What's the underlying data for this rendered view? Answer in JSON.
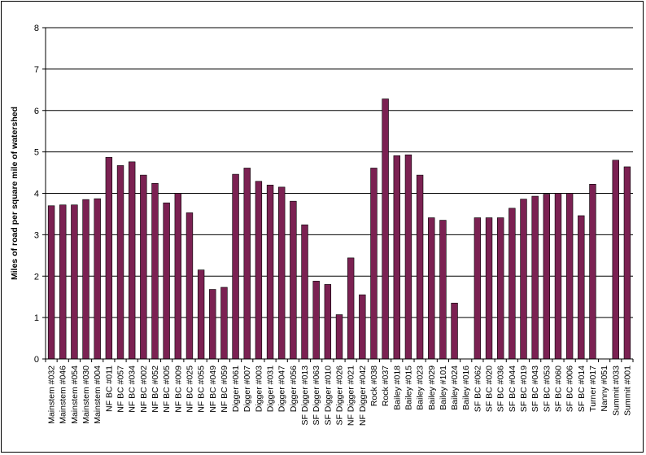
{
  "chart_data": {
    "type": "bar",
    "title": "",
    "xlabel": "",
    "ylabel": "Miles of road per square mile of watershed",
    "ylim": [
      0,
      8
    ],
    "yticks": [
      0,
      1,
      2,
      3,
      4,
      5,
      6,
      7,
      8
    ],
    "grid": true,
    "legend": "none",
    "bar_color": "#7b2152",
    "categories": [
      "Mainstem #032",
      "Mainstem #046",
      "Mainstem #054",
      "Mainstem #030",
      "Mainstem #004",
      "NF BC #011",
      "NF BC #057",
      "NF BC #034",
      "NF BC #002",
      "NF BC #052",
      "NF BC #005",
      "NF BC #009",
      "NF BC #025",
      "NF BC #055",
      "NF BC #049",
      "NF BC #059",
      "Digger #061",
      "Digger #007",
      "Digger #003",
      "Digger #031",
      "Digger #047",
      "Digger #056",
      "SF Digger #013",
      "SF Digger #063",
      "SF Digger #010",
      "SF Digger #026",
      "NF Digger #021",
      "NF Digger #042",
      "Rock #038",
      "Rock #037",
      "Bailey #018",
      "Bailey #015",
      "Bailey #023",
      "Bailey #029",
      "Bailey #101",
      "Bailey #024",
      "Bailey #016",
      "SF BC #062",
      "SF BC #020",
      "SF BC #036",
      "SF BC #044",
      "SF BC #019",
      "SF BC #043",
      "SF BC #053",
      "SF BC #060",
      "SF BC #006",
      "SF BC #014",
      "Turner #017",
      "Nanny #051",
      "Summit #033",
      "Summit #001"
    ],
    "values": [
      3.7,
      3.72,
      3.72,
      3.85,
      3.87,
      4.87,
      4.67,
      4.76,
      4.44,
      4.24,
      3.77,
      4.0,
      3.53,
      2.15,
      1.68,
      1.73,
      4.46,
      4.61,
      4.29,
      4.2,
      4.15,
      3.81,
      3.24,
      1.88,
      1.8,
      1.07,
      2.44,
      1.55,
      4.61,
      6.28,
      4.91,
      4.93,
      4.44,
      3.41,
      3.35,
      1.35,
      0,
      3.41,
      3.41,
      3.41,
      3.64,
      3.86,
      3.93,
      3.98,
      4.0,
      4.0,
      3.46,
      4.22,
      0,
      4.8,
      4.64
    ]
  }
}
